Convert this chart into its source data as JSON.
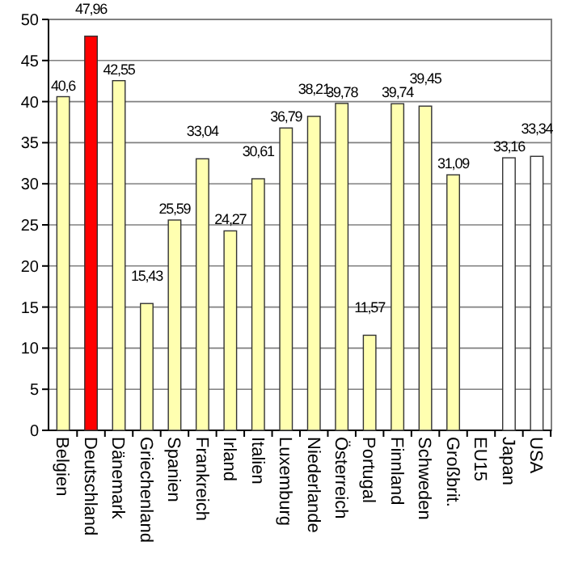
{
  "chart_data": {
    "type": "bar",
    "categories": [
      "Belgien",
      "Deutschland",
      "Dänemark",
      "Griechenland",
      "Spanien",
      "Frankreich",
      "Irland",
      "Italien",
      "Luxemburg",
      "Niederlande",
      "Österreich",
      "Portugal",
      "Finnland",
      "Schweden",
      "Großbrit.",
      "EU15",
      "Japan",
      "USA"
    ],
    "values": [
      40.6,
      47.96,
      42.55,
      15.43,
      25.59,
      33.04,
      24.27,
      30.61,
      36.79,
      38.21,
      39.78,
      11.57,
      39.74,
      39.45,
      31.09,
      null,
      33.16,
      33.34
    ],
    "value_labels": [
      "40,6",
      "47,96",
      "42,55",
      "15,43",
      "25,59",
      "33,04",
      "24,27",
      "30,61",
      "36,79",
      "38,21",
      "39,78",
      "11,57",
      "39,74",
      "39,45",
      "31,09",
      null,
      "33,16",
      "33,34"
    ],
    "colors": [
      "#ffffb0",
      "#ff0000",
      "#ffffb0",
      "#ffffb0",
      "#ffffb0",
      "#ffffb0",
      "#ffffb0",
      "#ffffb0",
      "#ffffb0",
      "#ffffb0",
      "#ffffb0",
      "#ffffb0",
      "#ffffb0",
      "#ffffb0",
      "#ffffb0",
      null,
      "#ffffff",
      "#ffffff"
    ],
    "ylim": [
      0,
      50
    ],
    "yticks": [
      0,
      5,
      10,
      15,
      20,
      25,
      30,
      35,
      40,
      45,
      50
    ],
    "grid": "y"
  }
}
